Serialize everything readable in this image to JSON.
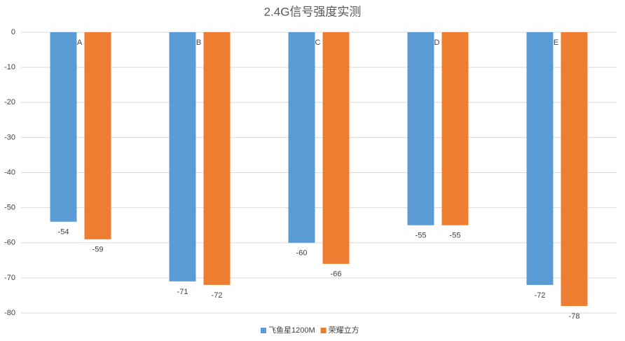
{
  "chart_data": {
    "type": "bar",
    "title": "2.4G信号强度实测",
    "categories": [
      "A",
      "B",
      "C",
      "D",
      "E"
    ],
    "series": [
      {
        "name": "飞鱼星1200M",
        "color": "#5b9bd5",
        "values": [
          -54,
          -71,
          -60,
          -55,
          -72
        ]
      },
      {
        "name": "荣耀立方",
        "color": "#ed7d31",
        "values": [
          -59,
          -72,
          -66,
          -55,
          -78
        ]
      }
    ],
    "ylim": [
      -80,
      0
    ],
    "yticks": [
      0,
      -10,
      -20,
      -30,
      -40,
      -50,
      -60,
      -70,
      -80
    ],
    "grid": true,
    "legend": "bottom"
  }
}
